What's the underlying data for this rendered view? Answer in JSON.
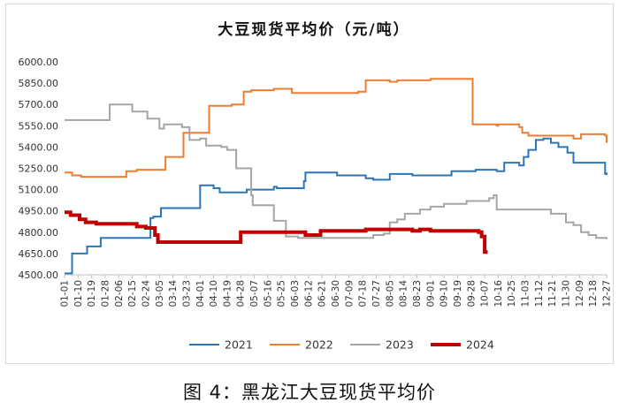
{
  "caption": "图 4：黑龙江大豆现货平均价",
  "chart_data": {
    "type": "line",
    "title": "大豆现货平均价（元/吨）",
    "xlabel": "",
    "ylabel": "",
    "ylim": [
      4500,
      6000
    ],
    "yticks": [
      "4500.00",
      "4650.00",
      "4800.00",
      "4950.00",
      "5100.00",
      "5250.00",
      "5400.00",
      "5550.00",
      "5700.00",
      "5850.00",
      "6000.00"
    ],
    "xticks": [
      "01-01",
      "01-10",
      "01-19",
      "01-28",
      "02-06",
      "02-15",
      "02-24",
      "03-05",
      "03-14",
      "03-23",
      "04-01",
      "04-10",
      "04-19",
      "04-28",
      "05-07",
      "05-16",
      "05-25",
      "06-03",
      "06-12",
      "06-21",
      "06-30",
      "07-09",
      "07-18",
      "07-27",
      "08-05",
      "08-14",
      "08-23",
      "09-01",
      "09-10",
      "09-19",
      "09-28",
      "10-07",
      "10-16",
      "10-25",
      "11-03",
      "11-12",
      "11-21",
      "11-30",
      "12-09",
      "12-18",
      "12-27"
    ],
    "grid": false,
    "legend_position": "bottom",
    "series": [
      {
        "name": "2021",
        "color": "#2e75b6",
        "x": [
          "01-01",
          "01-05",
          "01-06",
          "01-15",
          "01-16",
          "01-22",
          "01-25",
          "02-10",
          "02-11",
          "02-24",
          "02-27",
          "03-01",
          "03-06",
          "03-31",
          "04-01",
          "04-08",
          "04-10",
          "04-14",
          "04-25",
          "05-02",
          "05-10",
          "05-20",
          "05-22",
          "06-09",
          "06-10",
          "06-25",
          "07-01",
          "07-05",
          "07-20",
          "07-25",
          "08-05",
          "08-15",
          "08-20",
          "09-05",
          "09-15",
          "09-25",
          "10-01",
          "10-10",
          "10-15",
          "10-20",
          "10-25",
          "10-30",
          "11-02",
          "11-05",
          "11-10",
          "11-15",
          "11-20",
          "11-25",
          "12-01",
          "12-05",
          "12-10",
          "12-18",
          "12-24",
          "12-26",
          "12-27"
        ],
        "values": [
          4510,
          4510,
          4650,
          4650,
          4700,
          4700,
          4760,
          4760,
          4760,
          4760,
          4900,
          4910,
          4970,
          4970,
          5130,
          5130,
          5110,
          5080,
          5080,
          5100,
          5100,
          5120,
          5110,
          5160,
          5220,
          5220,
          5200,
          5200,
          5180,
          5170,
          5210,
          5210,
          5200,
          5200,
          5230,
          5230,
          5240,
          5240,
          5230,
          5290,
          5290,
          5270,
          5330,
          5380,
          5450,
          5460,
          5430,
          5400,
          5360,
          5290,
          5290,
          5290,
          5290,
          5210,
          5220
        ]
      },
      {
        "name": "2022",
        "color": "#ed7d31",
        "x": [
          "01-01",
          "01-05",
          "01-06",
          "01-12",
          "01-15",
          "02-10",
          "02-11",
          "02-16",
          "02-18",
          "03-08",
          "03-09",
          "03-20",
          "03-21",
          "04-06",
          "04-07",
          "04-19",
          "04-22",
          "04-30",
          "05-05",
          "05-15",
          "05-20",
          "06-01",
          "06-10",
          "06-25",
          "07-01",
          "07-10",
          "07-15",
          "07-20",
          "07-25",
          "08-05",
          "08-10",
          "08-20",
          "09-01",
          "09-10",
          "09-20",
          "09-28",
          "09-29",
          "10-10",
          "10-15",
          "10-16",
          "10-30",
          "11-01",
          "11-05",
          "11-10",
          "11-20",
          "11-30",
          "12-05",
          "12-10",
          "12-20",
          "12-26",
          "12-27"
        ],
        "values": [
          5220,
          5220,
          5200,
          5190,
          5190,
          5190,
          5230,
          5230,
          5240,
          5240,
          5330,
          5330,
          5500,
          5500,
          5690,
          5690,
          5700,
          5790,
          5800,
          5800,
          5810,
          5780,
          5780,
          5780,
          5780,
          5780,
          5790,
          5870,
          5870,
          5860,
          5870,
          5870,
          5880,
          5880,
          5880,
          5880,
          5560,
          5560,
          5550,
          5560,
          5540,
          5500,
          5480,
          5480,
          5480,
          5480,
          5460,
          5490,
          5490,
          5480,
          5430
        ]
      },
      {
        "name": "2023",
        "color": "#a5a5a5",
        "x": [
          "01-01",
          "01-10",
          "01-20",
          "01-30",
          "01-31",
          "02-14",
          "02-15",
          "02-20",
          "02-25",
          "03-02",
          "03-05",
          "03-08",
          "03-20",
          "03-25",
          "04-01",
          "04-05",
          "04-15",
          "04-19",
          "04-25",
          "05-02",
          "05-05",
          "05-06",
          "05-10",
          "05-20",
          "05-25",
          "05-28",
          "06-05",
          "06-10",
          "06-20",
          "07-05",
          "07-15",
          "07-25",
          "08-01",
          "08-05",
          "08-10",
          "08-15",
          "08-25",
          "09-01",
          "09-10",
          "09-25",
          "10-10",
          "10-13",
          "10-15",
          "10-25",
          "11-10",
          "11-20",
          "11-30",
          "12-05",
          "12-10",
          "12-15",
          "12-20",
          "12-27"
        ],
        "values": [
          5590,
          5590,
          5590,
          5590,
          5700,
          5700,
          5650,
          5650,
          5600,
          5600,
          5530,
          5560,
          5540,
          5450,
          5460,
          5410,
          5400,
          5380,
          5250,
          5250,
          5060,
          4990,
          4990,
          4880,
          4880,
          4770,
          4760,
          4760,
          4760,
          4760,
          4760,
          4780,
          4790,
          4870,
          4890,
          4930,
          4960,
          4980,
          5000,
          5020,
          5040,
          5060,
          4960,
          4960,
          4960,
          4930,
          4870,
          4850,
          4800,
          4780,
          4760,
          4750
        ]
      },
      {
        "name": "2024",
        "color": "#c00000",
        "x": [
          "01-01",
          "01-05",
          "01-09",
          "01-11",
          "01-15",
          "01-22",
          "02-06",
          "02-12",
          "02-18",
          "02-24",
          "02-26",
          "03-02",
          "03-04",
          "03-10",
          "04-10",
          "04-20",
          "04-26",
          "04-28",
          "05-15",
          "05-27",
          "06-10",
          "06-15",
          "06-20",
          "07-05",
          "07-20",
          "08-01",
          "08-15",
          "08-20",
          "08-25",
          "09-01",
          "09-15",
          "09-25",
          "10-03",
          "10-05",
          "10-07",
          "10-09"
        ],
        "values": [
          4940,
          4920,
          4920,
          4890,
          4870,
          4860,
          4860,
          4860,
          4840,
          4830,
          4830,
          4780,
          4730,
          4730,
          4730,
          4730,
          4730,
          4800,
          4800,
          4800,
          4780,
          4780,
          4810,
          4810,
          4820,
          4820,
          4820,
          4810,
          4820,
          4810,
          4810,
          4810,
          4800,
          4770,
          4660,
          4660
        ]
      }
    ]
  }
}
